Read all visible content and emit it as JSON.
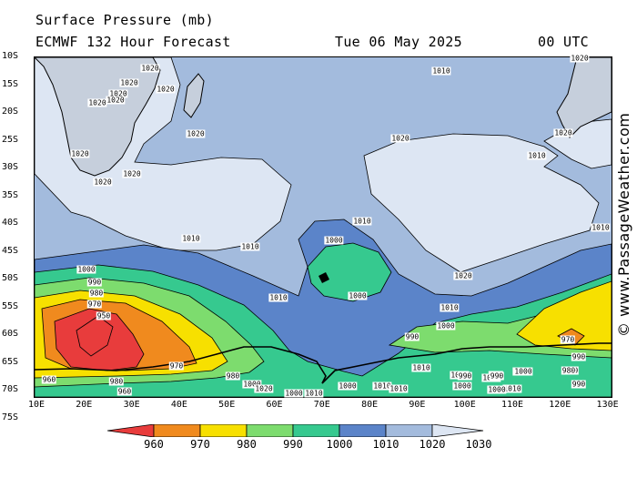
{
  "header": {
    "title": "Surface Pressure (mb)",
    "model_line": "ECMWF 132 Hour Forecast",
    "date": "Tue 06 May 2025",
    "time": "00 UTC"
  },
  "credit": "© www.PassageWeather.com",
  "lat_labels": [
    "10S",
    "15S",
    "20S",
    "25S",
    "30S",
    "35S",
    "40S",
    "45S",
    "50S",
    "55S",
    "60S",
    "65S",
    "70S",
    "75S"
  ],
  "lon_labels": [
    "10E",
    "20E",
    "30E",
    "40E",
    "50E",
    "60E",
    "70E",
    "80E",
    "90E",
    "100E",
    "110E",
    "120E",
    "130E"
  ],
  "isobar_labels": [
    "1020",
    "1020",
    "1020",
    "1020",
    "1020",
    "1020",
    "1010",
    "1020",
    "1020",
    "1020",
    "1020",
    "1020",
    "1020",
    "1010",
    "1020",
    "1010",
    "1010",
    "1000",
    "1000",
    "1010",
    "1020",
    "1000",
    "990",
    "980",
    "970",
    "950",
    "1010",
    "1000",
    "990",
    "1010",
    "980",
    "960",
    "980",
    "970",
    "990",
    "990",
    "980",
    "1000",
    "1000",
    "1010",
    "1010",
    "1010",
    "1000",
    "1010",
    "1020",
    "1020",
    "1000",
    "1010",
    "990",
    "1010",
    "1000",
    "990",
    "970",
    "980",
    "990",
    "1000",
    "1000",
    "960",
    "1010"
  ],
  "legend": {
    "levels": [
      "960",
      "970",
      "980",
      "990",
      "1000",
      "1010",
      "1020",
      "1030"
    ],
    "colors": [
      "#e83c3c",
      "#f08a1e",
      "#f7e000",
      "#7ddc6e",
      "#36c98f",
      "#5b84c9",
      "#a3bbdd",
      "#dde6f3"
    ]
  },
  "map_colors": {
    "land": "#c6cfdc",
    "land_border": "#9aa5b5"
  }
}
